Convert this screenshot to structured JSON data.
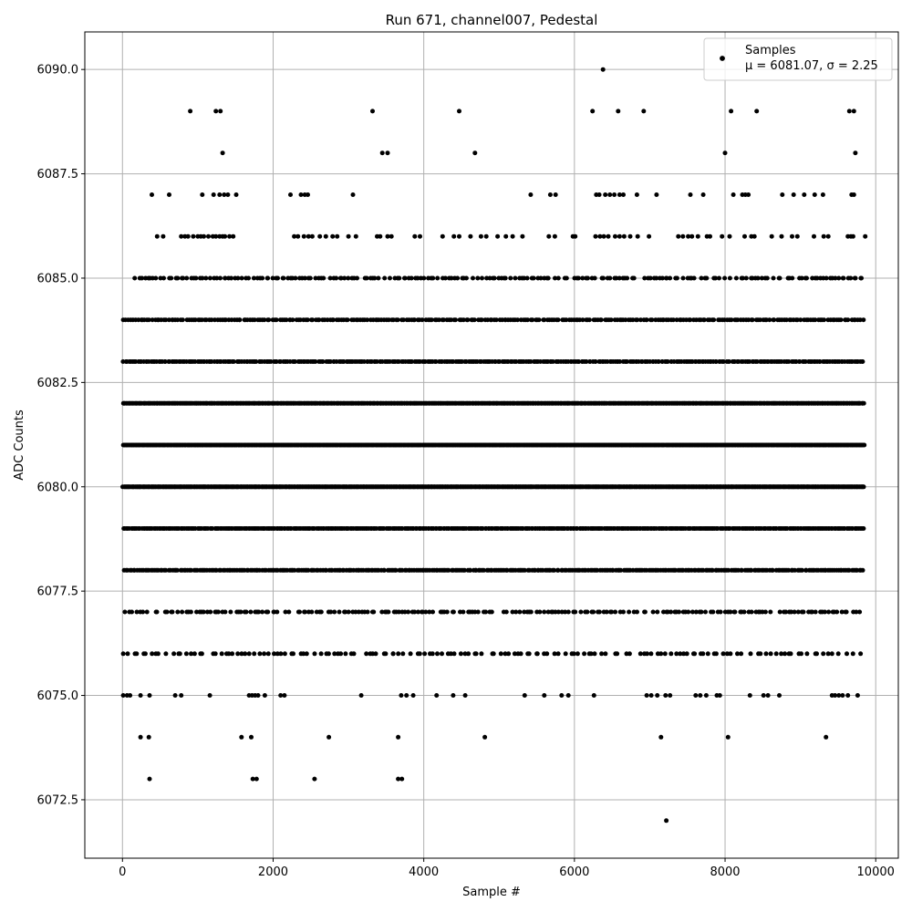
{
  "chart_data": {
    "type": "scatter",
    "title": "Run 671, channel007, Pedestal",
    "xlabel": "Sample #",
    "ylabel": "ADC Counts",
    "xlim": [
      -500,
      10300
    ],
    "ylim": [
      6071.1,
      6090.9
    ],
    "xticks": [
      0,
      2000,
      4000,
      6000,
      8000,
      10000
    ],
    "xtick_labels": [
      "0",
      "2000",
      "4000",
      "6000",
      "8000",
      "10000"
    ],
    "yticks": [
      6072.5,
      6075.0,
      6077.5,
      6080.0,
      6082.5,
      6085.0,
      6087.5,
      6090.0
    ],
    "ytick_labels": [
      "6072.5",
      "6075.0",
      "6077.5",
      "6080.0",
      "6082.5",
      "6085.0",
      "6087.5",
      "6090.0"
    ],
    "grid": true,
    "legend": {
      "placement": "top-right",
      "series_label": "Samples",
      "stats_label": "μ = 6081.07, σ = 2.25"
    },
    "colors": {
      "marker": "#000000",
      "grid": "#b0b0b0"
    },
    "sample_count": 9850,
    "mean": 6081.07,
    "sigma": 2.25,
    "levels": [
      {
        "y": 6090,
        "x": [
          6380
        ]
      },
      {
        "y": 6089,
        "x": [
          900,
          1240,
          1300,
          3320,
          4470,
          6240,
          6580,
          6920,
          8080,
          8420,
          9650,
          9710
        ]
      },
      {
        "y": 6088,
        "x": [
          1330,
          3450,
          3520,
          4680,
          8000,
          9730
        ]
      },
      {
        "y": 6087,
        "x": [
          390,
          620,
          1060,
          1210,
          1290,
          1350,
          1400,
          1510,
          2230,
          2370,
          2420,
          2460,
          3060,
          5420,
          5680,
          5750,
          6290,
          6330,
          6410,
          6470,
          6530,
          6600,
          6650,
          6830,
          7090,
          7540,
          7710,
          8110,
          8230,
          8270,
          8310,
          8760,
          8910,
          9050,
          9190,
          9300,
          9680,
          9710
        ]
      },
      {
        "y": 6086,
        "x": [
          460,
          540,
          780,
          830,
          870,
          940,
          1000,
          1040,
          1080,
          1140,
          1200,
          1240,
          1290,
          1330,
          1360,
          1420,
          1470,
          2280,
          2330,
          2410,
          2470,
          2520,
          2620,
          2700,
          2790,
          2850,
          3000,
          3100,
          3380,
          3420,
          3520,
          3570,
          3880,
          3950,
          4250,
          4400,
          4470,
          4620,
          4760,
          4830,
          4980,
          5090,
          5180,
          5310,
          5660,
          5740,
          5980,
          6010,
          6280,
          6340,
          6390,
          6450,
          6540,
          6600,
          6660,
          6740,
          6840,
          6990,
          7380,
          7440,
          7510,
          7560,
          7640,
          7760,
          7800,
          7960,
          8060,
          8260,
          8350,
          8390,
          8620,
          8750,
          8890,
          8960,
          9180,
          9310,
          9370,
          9630,
          9670,
          9700,
          9860
        ]
      },
      {
        "y": 6073,
        "x": [
          360,
          1730,
          1780,
          2550,
          3660,
          3710
        ]
      },
      {
        "y": 6074,
        "x": [
          240,
          350,
          1580,
          1710,
          2740,
          3660,
          4810,
          7150,
          8040,
          9340
        ]
      },
      {
        "y": 6075,
        "x": [
          10,
          60,
          100,
          240,
          360,
          700,
          780,
          1160,
          1680,
          1720,
          1760,
          1800,
          1890,
          2100,
          2150,
          3170,
          3700,
          3770,
          3860,
          4170,
          4390,
          4550,
          5340,
          5600,
          5830,
          5920,
          6260,
          6960,
          7020,
          7100,
          7210,
          7270,
          7610,
          7670,
          7750,
          7890,
          7930,
          8330,
          8510,
          8570,
          8720,
          9420,
          9460,
          9510,
          9560,
          9630,
          9760
        ]
      },
      {
        "y": 6072,
        "x": [
          7220
        ]
      }
    ],
    "dense_levels": [
      {
        "y": 6085,
        "x_start": 150,
        "x_end": 9850,
        "count": 240
      },
      {
        "y": 6084,
        "x_start": 0,
        "x_end": 9850,
        "count": 310
      },
      {
        "y": 6083,
        "x_start": 0,
        "x_end": 9850,
        "count": 400
      },
      {
        "y": 6082,
        "x_start": 0,
        "x_end": 9850,
        "count": 700
      },
      {
        "y": 6081,
        "x_start": 0,
        "x_end": 9850,
        "count": 800
      },
      {
        "y": 6080,
        "x_start": 0,
        "x_end": 9850,
        "count": 800
      },
      {
        "y": 6079,
        "x_start": 0,
        "x_end": 9850,
        "count": 480
      },
      {
        "y": 6078,
        "x_start": 0,
        "x_end": 9850,
        "count": 380
      },
      {
        "y": 6077,
        "x_start": 0,
        "x_end": 9850,
        "count": 240
      },
      {
        "y": 6076,
        "x_start": 0,
        "x_end": 9850,
        "count": 170
      }
    ]
  }
}
